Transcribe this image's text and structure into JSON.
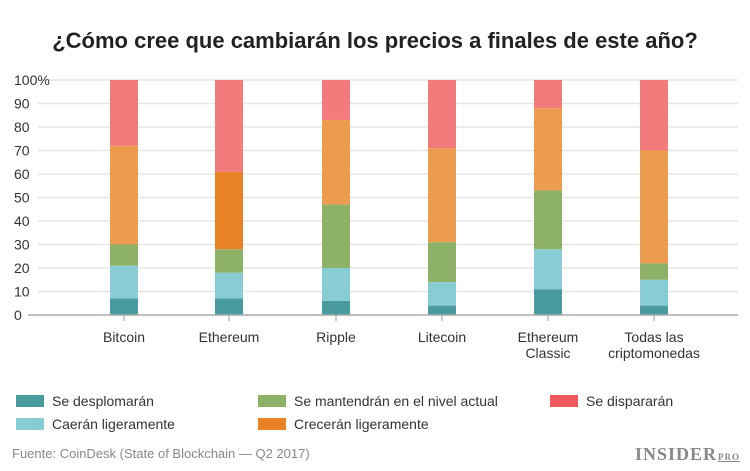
{
  "chart_data": {
    "type": "bar",
    "stacked": true,
    "title": "¿Cómo cree que cambiarán los precios a finales de este año?",
    "categories": [
      "Bitcoin",
      "Ethereum",
      "Ripple",
      "Litecoin",
      "Ethereum Classic",
      "Todas las criptomonedas"
    ],
    "ylim": [
      0,
      100
    ],
    "yticks": [
      "0",
      "10",
      "20",
      "30",
      "40",
      "50",
      "60",
      "70",
      "80",
      "90",
      "100%"
    ],
    "grid": true,
    "legend_placement": "bottom",
    "series": [
      {
        "name": "Se desplomarán",
        "color": "#4a9b9d",
        "values": [
          7,
          7,
          6,
          4,
          11,
          4
        ]
      },
      {
        "name": "Caerán ligeramente",
        "color": "#88ccd4",
        "values": [
          14,
          11,
          14,
          10,
          17,
          11
        ]
      },
      {
        "name": "Se mantendrán en el nivel actual",
        "color": "#8db166",
        "values": [
          9,
          10,
          27,
          17,
          25,
          7
        ]
      },
      {
        "name": "Crecerán ligeramente",
        "color": "#eb9c4e",
        "values": [
          42,
          33,
          36,
          40,
          35,
          48
        ]
      },
      {
        "name": "Se dispararán",
        "color": "#f47b7b",
        "values": [
          28,
          39,
          17,
          29,
          12,
          30
        ]
      }
    ],
    "highlight_color": "#e88224"
  },
  "source": "Fuente: CoinDesk (State of Blockchain — Q2 2017)",
  "logo": "INSIDER PRO"
}
